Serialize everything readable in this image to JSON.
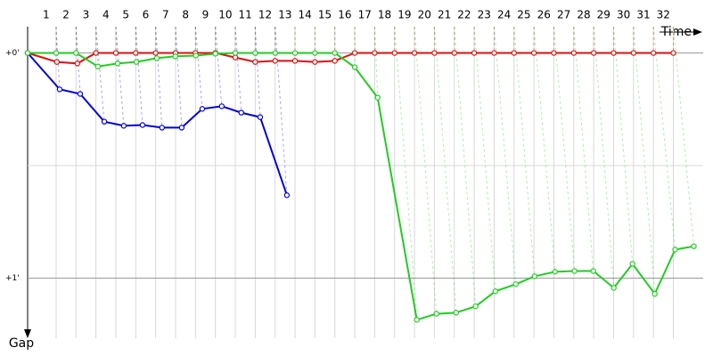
{
  "chart_data": {
    "type": "line",
    "x_label": "Time",
    "y_label": "Gap",
    "xlim": [
      -0.43,
      33.5
    ],
    "ylim": [
      -7,
      76
    ],
    "xticks": [
      1,
      2,
      3,
      4,
      5,
      6,
      7,
      8,
      9,
      10,
      11,
      12,
      13,
      14,
      15,
      16,
      17,
      18,
      19,
      20,
      21,
      22,
      23,
      24,
      25,
      26,
      27,
      28,
      29,
      30,
      31,
      32
    ],
    "yticks": [
      {
        "value": 0,
        "label": "+0'"
      },
      {
        "value": 60,
        "label": "+1'"
      }
    ],
    "minor_grid": [
      30
    ],
    "series": [
      {
        "color": "#0000dd",
        "x": [
          -0.43,
          1.18,
          2.21,
          3.42,
          4.4,
          5.34,
          6.32,
          7.31,
          8.34,
          9.32,
          10.3,
          11.25,
          12.59
        ],
        "values": [
          0,
          9.7,
          10.9,
          18.3,
          19.4,
          19.2,
          19.9,
          19.9,
          14.9,
          14.2,
          15.9,
          17.1,
          37.9
        ]
      },
      {
        "color": "#dd1111",
        "x": [
          -0.43,
          1.04,
          2.07,
          3,
          4,
          5,
          6,
          7,
          8,
          9,
          10,
          11,
          12,
          13,
          14,
          15,
          16,
          17,
          18,
          19,
          20,
          21,
          22,
          23,
          24,
          25,
          26,
          27,
          28,
          29,
          30,
          31,
          32
        ],
        "values": [
          0,
          2.4,
          2.8,
          0,
          0,
          0,
          0,
          0,
          0,
          0,
          1.2,
          2.4,
          2.1,
          2.1,
          2.4,
          2.1,
          0,
          0,
          0,
          0,
          0,
          0,
          0,
          0,
          0,
          0,
          0,
          0,
          0,
          0,
          0,
          0,
          0
        ]
      },
      {
        "color": "#22cc22",
        "x": [
          -0.43,
          1,
          2,
          3.1,
          4.09,
          5.03,
          6.06,
          6.99,
          8.02,
          9,
          10,
          11,
          12,
          13,
          14,
          15,
          16,
          17.15,
          19.12,
          20.1,
          21.09,
          22.07,
          23.06,
          24.09,
          25.03,
          26.06,
          27.04,
          27.98,
          29.01,
          29.95,
          31.07,
          32.09,
          33.03
        ],
        "values": [
          0,
          0,
          0,
          3.6,
          2.8,
          2.4,
          1.4,
          0.9,
          0.7,
          0.2,
          0,
          0,
          0,
          0,
          0,
          0,
          3.8,
          11.9,
          71.1,
          69.5,
          69.2,
          67.5,
          63.5,
          61.6,
          59.5,
          58.3,
          58.1,
          58.1,
          62.6,
          56.2,
          64.2,
          52.4,
          51.5
        ]
      }
    ]
  }
}
